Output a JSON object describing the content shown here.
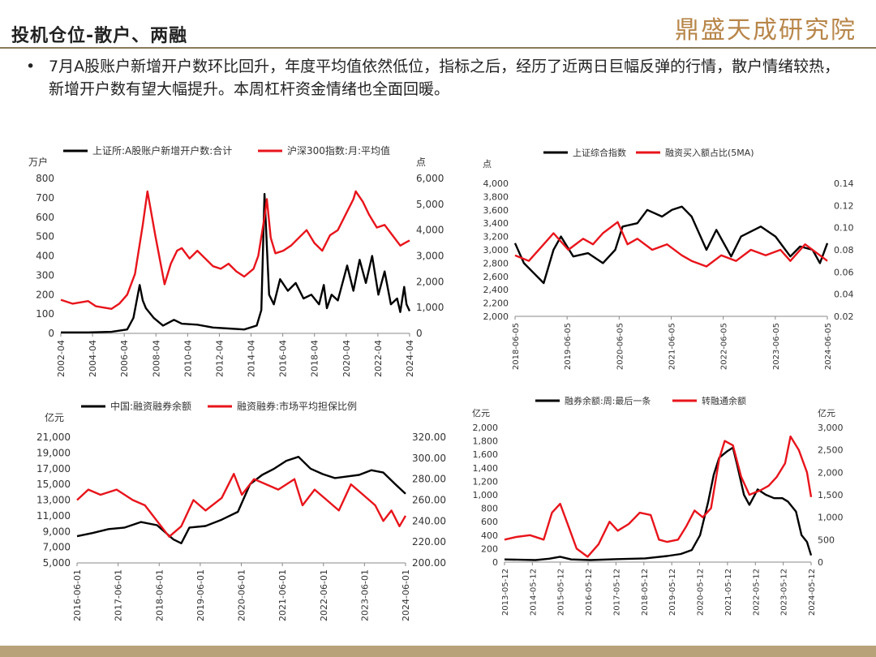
{
  "header": {
    "title": "投机仓位-散户、两融",
    "logo": "鼎盛天成研究院"
  },
  "bullet": {
    "symbol": "•",
    "text": "7月A股账户新增开户数环比回升，年度平均值依然低位，指标之后，经历了近两日巨幅反弹的行情，散户情绪较热，新增开户数有望大幅提升。本周杠杆资金情绪也全面回暖。"
  },
  "colors": {
    "black": "#000000",
    "red": "#e8141b",
    "title_rule": "#8a7a5c",
    "footer": "#b8a27a"
  },
  "chart_data": [
    {
      "type": "line",
      "series": [
        {
          "name": "上证所:A股账户新增开户数:合计",
          "color": "#000000",
          "axis": "left",
          "x": [
            2002.25,
            2004.0,
            2005.5,
            2006.5,
            2006.9,
            2007.3,
            2007.5,
            2007.7,
            2008.2,
            2008.8,
            2009.5,
            2010.0,
            2011.0,
            2012.0,
            2013.0,
            2014.0,
            2014.8,
            2015.1,
            2015.3,
            2015.45,
            2015.6,
            2015.9,
            2016.3,
            2016.8,
            2017.3,
            2017.8,
            2018.3,
            2018.8,
            2019.1,
            2019.3,
            2019.6,
            2020.0,
            2020.6,
            2021.0,
            2021.4,
            2021.8,
            2022.2,
            2022.6,
            2023.0,
            2023.4,
            2023.8,
            2024.0,
            2024.25,
            2024.4,
            2024.6
          ],
          "y": [
            5,
            5,
            8,
            20,
            80,
            250,
            170,
            130,
            80,
            40,
            70,
            50,
            45,
            30,
            25,
            20,
            40,
            120,
            720,
            450,
            200,
            150,
            280,
            220,
            260,
            180,
            200,
            150,
            250,
            130,
            200,
            170,
            350,
            220,
            380,
            260,
            400,
            200,
            320,
            150,
            180,
            110,
            240,
            150,
            115
          ]
        },
        {
          "name": "沪深300指数:月:平均值",
          "color": "#e8141b",
          "axis": "right",
          "x": [
            2002.25,
            2003.0,
            2004.0,
            2004.5,
            2005.0,
            2005.5,
            2006.0,
            2006.5,
            2007.0,
            2007.5,
            2007.8,
            2008.3,
            2008.9,
            2009.3,
            2009.7,
            2010.0,
            2010.5,
            2011.0,
            2011.5,
            2012.0,
            2012.5,
            2013.0,
            2013.5,
            2014.0,
            2014.6,
            2014.9,
            2015.3,
            2015.45,
            2015.7,
            2016.0,
            2016.5,
            2017.0,
            2017.5,
            2018.0,
            2018.5,
            2019.0,
            2019.5,
            2020.0,
            2020.5,
            2021.0,
            2021.15,
            2021.6,
            2022.0,
            2022.5,
            2023.0,
            2023.5,
            2024.0,
            2024.3,
            2024.6
          ],
          "y": [
            1300,
            1150,
            1250,
            1050,
            1000,
            950,
            1150,
            1500,
            2300,
            4200,
            5500,
            3800,
            1900,
            2700,
            3200,
            3300,
            2900,
            3200,
            2900,
            2600,
            2500,
            2700,
            2400,
            2200,
            2500,
            3000,
            4500,
            5200,
            3700,
            3100,
            3200,
            3400,
            3700,
            4000,
            3500,
            3200,
            3800,
            4000,
            4600,
            5200,
            5500,
            5100,
            4600,
            4100,
            4200,
            3800,
            3400,
            3500,
            3600
          ]
        }
      ],
      "legend": [
        "上证所:A股账户新增开户数:合计",
        "沪深300指数:月:平均值"
      ],
      "y_left_unit": "万户",
      "y_right_unit": "点",
      "ylim_left": [
        0,
        800
      ],
      "ylim_right": [
        0,
        6000
      ],
      "y_left_ticks": [
        "0",
        "100",
        "200",
        "300",
        "400",
        "500",
        "600",
        "700",
        "800"
      ],
      "y_right_ticks": [
        "0",
        "1,000",
        "2,000",
        "3,000",
        "4,000",
        "5,000",
        "6,000"
      ],
      "x_ticks": [
        "2002-04",
        "2004-04",
        "2006-04",
        "2008-04",
        "2010-04",
        "2012-04",
        "2014-04",
        "2016-04",
        "2018-04",
        "2020-04",
        "2022-04",
        "2024-04"
      ],
      "xlim": [
        2002.25,
        2024.6
      ]
    },
    {
      "type": "line",
      "series": [
        {
          "name": "上证综合指数",
          "color": "#000000",
          "axis": "left",
          "x": [
            2018.42,
            2018.6,
            2018.8,
            2019.0,
            2019.2,
            2019.35,
            2019.6,
            2019.9,
            2020.2,
            2020.45,
            2020.6,
            2020.9,
            2021.1,
            2021.4,
            2021.6,
            2021.8,
            2022.0,
            2022.3,
            2022.5,
            2022.8,
            2023.0,
            2023.4,
            2023.7,
            2024.0,
            2024.2,
            2024.45,
            2024.6,
            2024.75
          ],
          "y": [
            3100,
            2800,
            2650,
            2500,
            3000,
            3200,
            2900,
            2950,
            2800,
            3000,
            3350,
            3400,
            3600,
            3500,
            3600,
            3650,
            3500,
            3000,
            3300,
            2900,
            3200,
            3350,
            3200,
            2900,
            3050,
            3000,
            2800,
            3100
          ]
        },
        {
          "name": "融资买入额占比(5MA)",
          "color": "#e8141b",
          "axis": "right",
          "x": [
            2018.42,
            2018.7,
            2019.0,
            2019.2,
            2019.5,
            2019.8,
            2020.0,
            2020.2,
            2020.5,
            2020.7,
            2020.9,
            2021.2,
            2021.5,
            2021.8,
            2022.0,
            2022.3,
            2022.6,
            2022.9,
            2023.2,
            2023.5,
            2023.8,
            2024.0,
            2024.3,
            2024.6,
            2024.75
          ],
          "y": [
            0.075,
            0.07,
            0.085,
            0.095,
            0.08,
            0.09,
            0.085,
            0.095,
            0.105,
            0.085,
            0.09,
            0.08,
            0.085,
            0.075,
            0.07,
            0.065,
            0.075,
            0.07,
            0.08,
            0.075,
            0.08,
            0.07,
            0.085,
            0.075,
            0.07
          ]
        }
      ],
      "legend": [
        "上证综合指数",
        "融资买入额占比(5MA)"
      ],
      "y_left_unit": "点",
      "ylim_left": [
        2000,
        4000
      ],
      "ylim_right": [
        0.02,
        0.14
      ],
      "y_left_ticks": [
        "2,000",
        "2,200",
        "2,400",
        "2,600",
        "2,800",
        "3,000",
        "3,200",
        "3,400",
        "3,600",
        "3,800",
        "4,000"
      ],
      "y_right_ticks": [
        "0.02",
        "0.04",
        "0.06",
        "0.08",
        "0.10",
        "0.12",
        "0.14"
      ],
      "x_ticks": [
        "2018-06-05",
        "2019-06-05",
        "2020-06-05",
        "2021-06-05",
        "2022-06-05",
        "2023-06-05",
        "2024-06-05"
      ],
      "xlim": [
        2018.42,
        2024.75
      ]
    },
    {
      "type": "line",
      "series": [
        {
          "name": "中国:融资融券余额",
          "color": "#000000",
          "axis": "left",
          "x": [
            2016.42,
            2016.8,
            2017.2,
            2017.6,
            2018.0,
            2018.4,
            2018.8,
            2019.0,
            2019.2,
            2019.6,
            2020.0,
            2020.4,
            2020.7,
            2021.0,
            2021.3,
            2021.6,
            2021.9,
            2022.2,
            2022.5,
            2022.8,
            2023.1,
            2023.4,
            2023.7,
            2024.0,
            2024.3,
            2024.55
          ],
          "y": [
            8400,
            8800,
            9300,
            9500,
            10200,
            9800,
            8000,
            7500,
            9500,
            9700,
            10500,
            11500,
            15000,
            16200,
            17000,
            18000,
            18500,
            17000,
            16300,
            15800,
            16000,
            16200,
            16800,
            16500,
            15000,
            13800
          ]
        },
        {
          "name": "融资融券:市场平均担保比例",
          "color": "#e8141b",
          "axis": "right",
          "x": [
            2016.42,
            2016.7,
            2017.0,
            2017.4,
            2017.8,
            2018.1,
            2018.4,
            2018.7,
            2019.0,
            2019.3,
            2019.6,
            2020.0,
            2020.3,
            2020.5,
            2020.8,
            2021.1,
            2021.4,
            2021.8,
            2022.0,
            2022.3,
            2022.6,
            2022.9,
            2023.2,
            2023.5,
            2023.8,
            2024.0,
            2024.2,
            2024.4,
            2024.55
          ],
          "y": [
            260,
            270,
            265,
            270,
            260,
            255,
            240,
            225,
            235,
            260,
            250,
            262,
            285,
            265,
            280,
            275,
            270,
            280,
            255,
            270,
            260,
            250,
            275,
            265,
            255,
            240,
            250,
            235,
            245
          ]
        }
      ],
      "legend": [
        "中国:融资融券余额",
        "融资融券:市场平均担保比例"
      ],
      "y_left_unit": "亿元",
      "ylim_left": [
        5000,
        21000
      ],
      "ylim_right": [
        200,
        320
      ],
      "y_left_ticks": [
        "5,000",
        "7,000",
        "9,000",
        "11,000",
        "13,000",
        "15,000",
        "17,000",
        "19,000",
        "21,000"
      ],
      "y_right_ticks": [
        "200.00",
        "220.00",
        "240.00",
        "260.00",
        "280.00",
        "300.00",
        "320.00"
      ],
      "x_ticks": [
        "2016-06-01",
        "2017-06-01",
        "2018-06-01",
        "2019-06-01",
        "2020-06-01",
        "2021-06-01",
        "2022-06-01",
        "2023-06-01",
        "2024-06-01"
      ],
      "xlim": [
        2016.42,
        2024.55
      ]
    },
    {
      "type": "line",
      "series": [
        {
          "name": "融券余额:周:最后一条",
          "color": "#000000",
          "axis": "left",
          "x": [
            2013.37,
            2014.5,
            2015.0,
            2015.4,
            2015.8,
            2016.5,
            2017.5,
            2018.5,
            2019.3,
            2019.8,
            2020.2,
            2020.5,
            2020.8,
            2021.0,
            2021.2,
            2021.5,
            2021.7,
            2021.85,
            2022.1,
            2022.3,
            2022.6,
            2022.9,
            2023.2,
            2023.5,
            2023.7,
            2024.0,
            2024.2,
            2024.4,
            2024.55
          ],
          "y": [
            40,
            30,
            50,
            80,
            40,
            30,
            45,
            55,
            90,
            120,
            180,
            400,
            900,
            1300,
            1550,
            1650,
            1700,
            1450,
            1000,
            850,
            1080,
            1000,
            950,
            950,
            900,
            750,
            400,
            300,
            100
          ]
        },
        {
          "name": "转融通余额",
          "color": "#e8141b",
          "axis": "right",
          "x": [
            2013.37,
            2013.8,
            2014.3,
            2014.8,
            2015.1,
            2015.4,
            2015.7,
            2016.0,
            2016.4,
            2016.8,
            2017.2,
            2017.5,
            2017.9,
            2018.3,
            2018.7,
            2019.0,
            2019.3,
            2019.7,
            2020.0,
            2020.3,
            2020.6,
            2020.9,
            2021.2,
            2021.4,
            2021.7,
            2022.0,
            2022.3,
            2022.7,
            2023.0,
            2023.3,
            2023.6,
            2023.8,
            2024.1,
            2024.4,
            2024.55
          ],
          "y": [
            500,
            560,
            600,
            500,
            1100,
            1300,
            800,
            300,
            120,
            400,
            900,
            700,
            850,
            1100,
            1050,
            500,
            450,
            500,
            800,
            1150,
            1000,
            1200,
            2300,
            2700,
            2600,
            1900,
            1500,
            1600,
            1700,
            1900,
            2200,
            2800,
            2500,
            2000,
            1450
          ]
        }
      ],
      "legend": [
        "融券余额:周:最后一条",
        "转融通余额"
      ],
      "y_left_unit": "亿元",
      "y_right_unit": "亿元",
      "ylim_left": [
        0,
        2000
      ],
      "ylim_right": [
        0,
        3000
      ],
      "y_left_ticks": [
        "0",
        "200",
        "400",
        "600",
        "800",
        "1,000",
        "1,200",
        "1,400",
        "1,600",
        "1,800",
        "2,000"
      ],
      "y_right_ticks": [
        "0",
        "500",
        "1,000",
        "1,500",
        "2,000",
        "2,500",
        "3,000"
      ],
      "x_ticks": [
        "2013-05-12",
        "2014-05-12",
        "2015-05-12",
        "2016-05-12",
        "2017-05-12",
        "2018-05-12",
        "2019-05-12",
        "2020-05-12",
        "2021-05-12",
        "2022-05-12",
        "2023-05-12",
        "2024-05-12"
      ],
      "xlim": [
        2013.37,
        2024.55
      ]
    }
  ]
}
